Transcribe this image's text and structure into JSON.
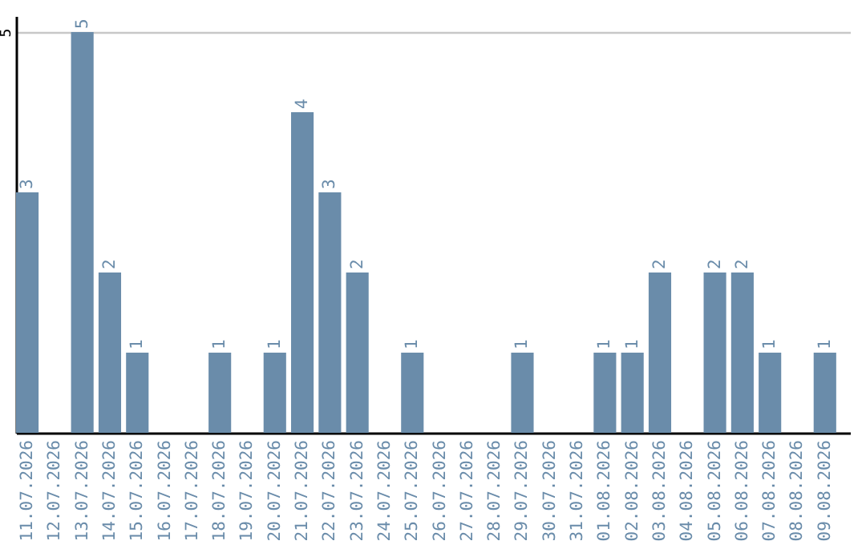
{
  "chart_data": {
    "type": "bar",
    "categories": [
      "11.07.2026",
      "12.07.2026",
      "13.07.2026",
      "14.07.2026",
      "15.07.2026",
      "16.07.2026",
      "17.07.2026",
      "18.07.2026",
      "19.07.2026",
      "20.07.2026",
      "21.07.2026",
      "22.07.2026",
      "23.07.2026",
      "24.07.2026",
      "25.07.2026",
      "26.07.2026",
      "27.07.2026",
      "28.07.2026",
      "29.07.2026",
      "30.07.2026",
      "31.07.2026",
      "01.08.2026",
      "02.08.2026",
      "03.08.2026",
      "04.08.2026",
      "05.08.2026",
      "06.08.2026",
      "07.08.2026",
      "08.08.2026",
      "09.08.2026"
    ],
    "values": [
      3,
      0,
      5,
      2,
      1,
      0,
      0,
      1,
      0,
      1,
      4,
      3,
      2,
      0,
      1,
      0,
      0,
      0,
      1,
      0,
      0,
      1,
      1,
      2,
      0,
      2,
      2,
      1,
      0,
      1
    ],
    "value_labels": [
      "3",
      null,
      "5",
      "2",
      "1",
      null,
      null,
      "1",
      null,
      "1",
      "4",
      "3",
      "2",
      null,
      "1",
      null,
      null,
      null,
      "1",
      null,
      null,
      "1",
      "1",
      "2",
      null,
      "2",
      "2",
      "1",
      null,
      "1"
    ],
    "color": "#6a8caa",
    "ylim": [
      0,
      5.2
    ],
    "yticks": [
      5
    ],
    "grid": "y"
  }
}
